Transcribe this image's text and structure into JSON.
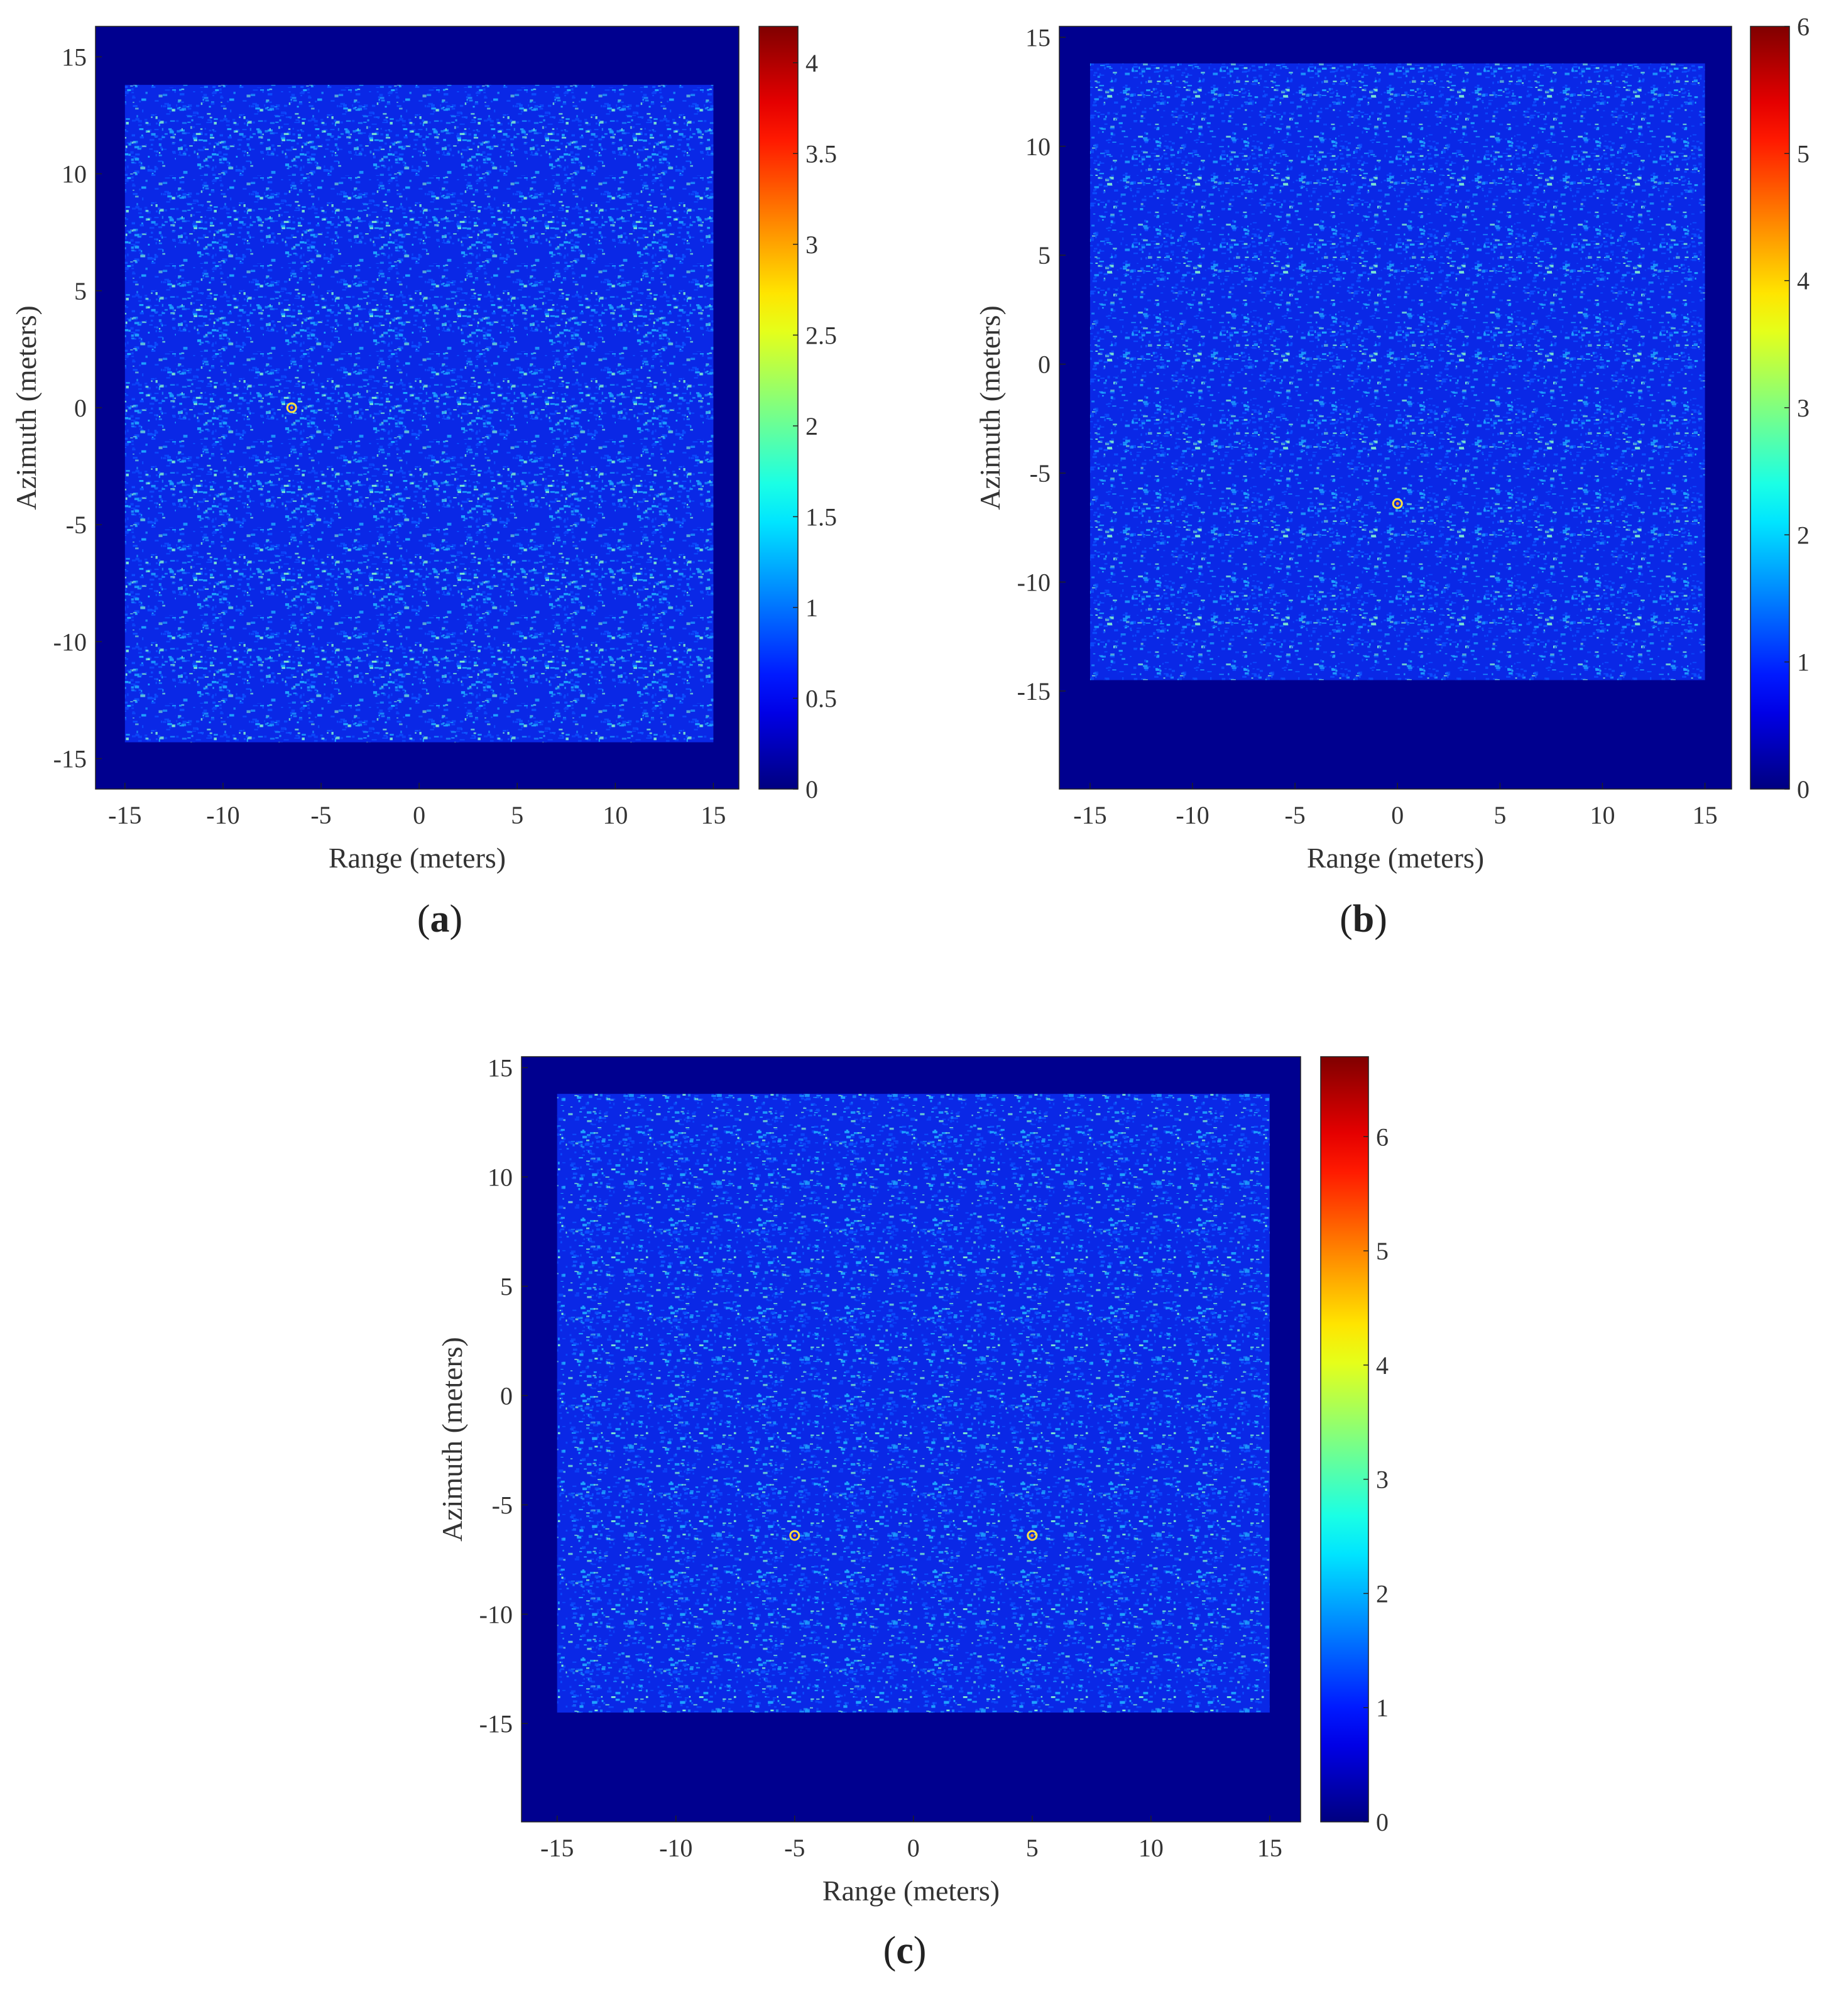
{
  "panels": [
    {
      "caption_letter": "a",
      "chart_data": {
        "type": "heatmap",
        "xlabel": "Range (meters)",
        "ylabel": "Azimuth (meters)",
        "xlim": [
          -16.5,
          16.3
        ],
        "ylim": [
          -16.3,
          16.3
        ],
        "xticks": [
          "-15",
          "-10",
          "-5",
          "0",
          "5",
          "10",
          "15"
        ],
        "yticks": [
          "15",
          "10",
          "5",
          "0",
          "-5",
          "-10",
          "-15"
        ],
        "colormap": "jet",
        "colorbar": {
          "min": 0,
          "max": 4.2,
          "ticks": [
            "0",
            "0.5",
            "1",
            "1.5",
            "2",
            "2.5",
            "3",
            "3.5",
            "4"
          ]
        },
        "clutter_region": {
          "x": [
            -15,
            15
          ],
          "y": [
            -14.3,
            13.8
          ]
        },
        "targets": [
          {
            "x": -6.5,
            "y": 0
          }
        ]
      }
    },
    {
      "caption_letter": "b",
      "chart_data": {
        "type": "heatmap",
        "xlabel": "Range (meters)",
        "ylabel": "Azimuth (meters)",
        "xlim": [
          -16.5,
          16.3
        ],
        "ylim": [
          -19.5,
          15.5
        ],
        "xticks": [
          "-15",
          "-10",
          "-5",
          "0",
          "5",
          "10",
          "15"
        ],
        "yticks": [
          "15",
          "10",
          "5",
          "0",
          "-5",
          "-10",
          "-15"
        ],
        "colormap": "jet",
        "colorbar": {
          "min": 0,
          "max": 6,
          "ticks": [
            "0",
            "1",
            "2",
            "3",
            "4",
            "5",
            "6"
          ]
        },
        "clutter_region": {
          "x": [
            -15,
            15
          ],
          "y": [
            -14.5,
            13.8
          ]
        },
        "targets": [
          {
            "x": 0,
            "y": -6.4
          }
        ]
      }
    },
    {
      "caption_letter": "c",
      "chart_data": {
        "type": "heatmap",
        "xlabel": "Range (meters)",
        "ylabel": "Azimuth (meters)",
        "xlim": [
          -16.5,
          16.3
        ],
        "ylim": [
          -19.5,
          15.5
        ],
        "xticks": [
          "-15",
          "-10",
          "-5",
          "0",
          "5",
          "10",
          "15"
        ],
        "yticks": [
          "15",
          "10",
          "5",
          "0",
          "-5",
          "-10",
          "-15"
        ],
        "colormap": "jet",
        "colorbar": {
          "min": 0,
          "max": 6.7,
          "ticks": [
            "0",
            "1",
            "2",
            "3",
            "4",
            "5",
            "6"
          ]
        },
        "clutter_region": {
          "x": [
            -15,
            15
          ],
          "y": [
            -14.5,
            13.8
          ]
        },
        "targets": [
          {
            "x": -5,
            "y": -6.4
          },
          {
            "x": 5,
            "y": -6.4
          }
        ]
      }
    }
  ],
  "colors": {
    "background": "#00008f",
    "clutter_base": "#0a28e6",
    "speckle_bright": "#1ea5ff",
    "speckle_peak": "#7ff0d0",
    "target_ring": "#ffe040"
  }
}
